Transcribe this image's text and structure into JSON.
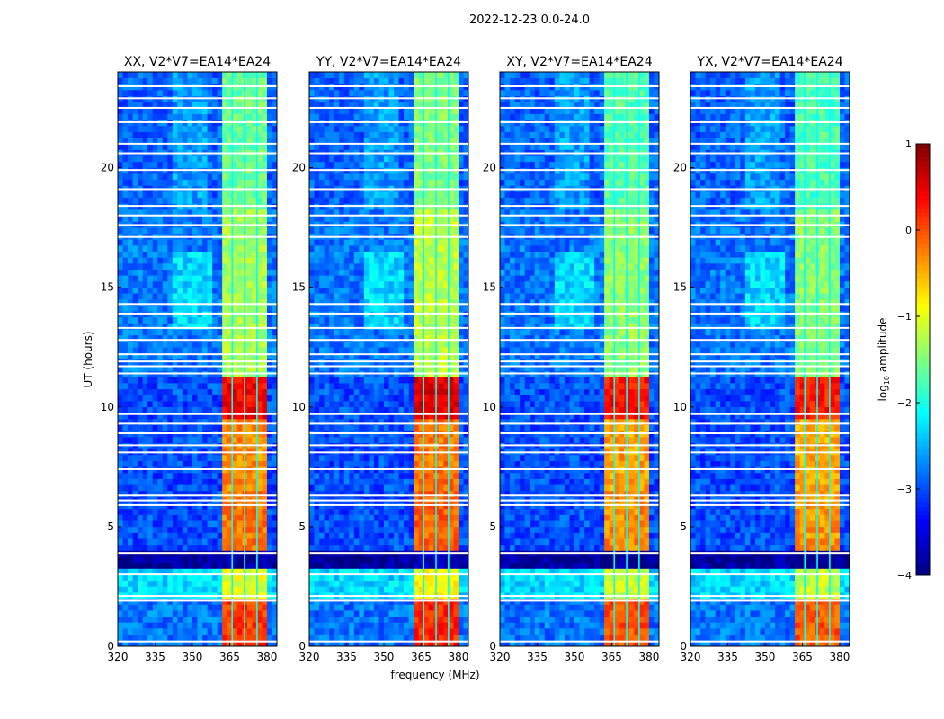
{
  "chart_data": {
    "type": "heatmap",
    "suptitle": "2022-12-23 0.0-24.0",
    "xlabel": "frequency (MHz)",
    "ylabel": "UT (hours)",
    "xlim": [
      320,
      384
    ],
    "ylim": [
      0,
      24
    ],
    "xticks": [
      320,
      335,
      350,
      365,
      380
    ],
    "yticks": [
      0,
      5,
      10,
      15,
      20
    ],
    "colorbar": {
      "label": "log10 amplitude",
      "label_main": "log",
      "label_sub": "10",
      "label_rest": " amplitude",
      "range": [
        -4,
        1
      ],
      "ticks": [
        1,
        0,
        -1,
        -2,
        -3,
        -4
      ],
      "colormap": "jet"
    },
    "band_mhz": [
      361,
      380
    ],
    "band_dividers_mhz": [
      366,
      371,
      376
    ],
    "segments": [
      {
        "t": [
          0,
          2
        ],
        "band": 0.1,
        "bg": -2.8
      },
      {
        "t": [
          2,
          3.2
        ],
        "band": -1.0,
        "bg": -2.3
      },
      {
        "t": [
          3.2,
          3.8
        ],
        "band": -3.8,
        "bg": -3.9
      },
      {
        "t": [
          3.8,
          6.5
        ],
        "band": -0.2,
        "bg": -3.0
      },
      {
        "t": [
          6.5,
          9.5
        ],
        "band": -0.3,
        "bg": -3.0
      },
      {
        "t": [
          9.5,
          11.2
        ],
        "band": 0.4,
        "bg": -3.0
      },
      {
        "t": [
          11.2,
          18.2
        ],
        "band": -1.3,
        "bg": -2.8
      },
      {
        "t": [
          18.2,
          24
        ],
        "band": -1.6,
        "bg": -2.9
      }
    ],
    "flagged_hours": [
      0.2,
      1.9,
      2.1,
      3.0,
      3.9,
      5.9,
      6.1,
      6.3,
      7.4,
      8.1,
      8.4,
      8.9,
      9.3,
      9.7,
      11.4,
      11.7,
      11.9,
      12.2,
      12.8,
      13.3,
      13.9,
      14.3,
      17.1,
      17.6,
      18.0,
      18.4,
      19.1,
      19.9,
      20.6,
      21.0,
      21.9,
      22.5,
      22.9,
      23.4
    ],
    "panels": [
      {
        "title": "XX, V2*V7=EA14*EA24",
        "band_offset": 0.0
      },
      {
        "title": "YY, V2*V7=EA14*EA24",
        "band_offset": 0.1
      },
      {
        "title": "XY, V2*V7=EA14*EA24",
        "band_offset": -0.1
      },
      {
        "title": "YX, V2*V7=EA14*EA24",
        "band_offset": -0.15
      }
    ]
  }
}
